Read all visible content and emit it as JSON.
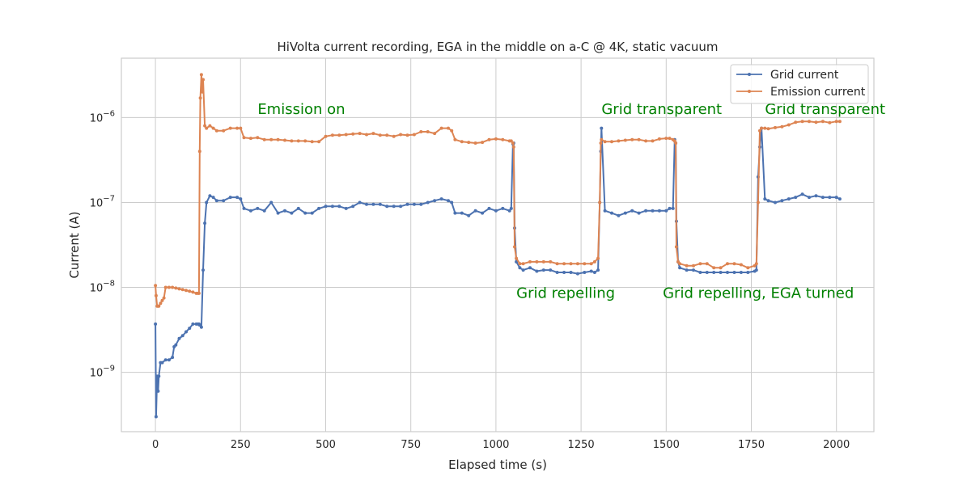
{
  "chart_data": {
    "type": "line",
    "title": "HiVolta current recording, EGA in the middle on a-C @ 4K, static vacuum",
    "xlabel": "Elapsed time (s)",
    "ylabel": "Current (A)",
    "xlim": [
      -100,
      2110
    ],
    "ylim": [
      2e-10,
      5e-06
    ],
    "yscale": "log",
    "xticks": [
      0,
      250,
      500,
      750,
      1000,
      1250,
      1500,
      1750,
      2000
    ],
    "xtick_labels": [
      "0",
      "250",
      "500",
      "750",
      "1000",
      "1250",
      "1500",
      "1750",
      "2000"
    ],
    "yticks": [
      1e-09,
      1e-08,
      1e-07,
      1e-06
    ],
    "ytick_bases": [
      "10",
      "10",
      "10",
      "10"
    ],
    "ytick_exponents": [
      "−9",
      "−8",
      "−7",
      "−6"
    ],
    "grid": true,
    "legend_position": "top-right",
    "series": [
      {
        "name": "Grid current",
        "color": "#4c72b0",
        "x": [
          0,
          2,
          5,
          8,
          10,
          15,
          20,
          30,
          40,
          50,
          55,
          60,
          70,
          80,
          90,
          100,
          110,
          120,
          125,
          128,
          130,
          135,
          140,
          145,
          150,
          160,
          170,
          180,
          200,
          220,
          240,
          250,
          260,
          280,
          300,
          320,
          340,
          360,
          380,
          400,
          420,
          440,
          460,
          480,
          500,
          520,
          540,
          560,
          580,
          600,
          620,
          640,
          660,
          680,
          700,
          720,
          740,
          760,
          780,
          800,
          820,
          840,
          860,
          870,
          880,
          900,
          920,
          940,
          960,
          980,
          1000,
          1020,
          1040,
          1045,
          1050,
          1052,
          1055,
          1060,
          1070,
          1080,
          1100,
          1120,
          1140,
          1160,
          1180,
          1200,
          1220,
          1240,
          1260,
          1280,
          1290,
          1300,
          1305,
          1308,
          1310,
          1320,
          1340,
          1360,
          1380,
          1400,
          1420,
          1440,
          1460,
          1480,
          1500,
          1510,
          1520,
          1525,
          1528,
          1530,
          1535,
          1540,
          1560,
          1580,
          1600,
          1620,
          1640,
          1660,
          1680,
          1700,
          1720,
          1740,
          1760,
          1765,
          1770,
          1775,
          1780,
          1790,
          1800,
          1820,
          1840,
          1860,
          1880,
          1900,
          1920,
          1940,
          1960,
          1980,
          2000,
          2010
        ],
        "y": [
          3.7e-09,
          3e-10,
          9e-10,
          6e-10,
          9e-10,
          1.3e-09,
          1.3e-09,
          1.4e-09,
          1.4e-09,
          1.5e-09,
          2e-09,
          2.1e-09,
          2.5e-09,
          2.7e-09,
          3e-09,
          3.3e-09,
          3.7e-09,
          3.7e-09,
          3.7e-09,
          3.7e-09,
          3.6e-09,
          3.4e-09,
          1.6e-08,
          5.7e-08,
          1e-07,
          1.2e-07,
          1.15e-07,
          1.05e-07,
          1.05e-07,
          1.15e-07,
          1.15e-07,
          1.1e-07,
          8.5e-08,
          8e-08,
          8.5e-08,
          8e-08,
          1e-07,
          7.5e-08,
          8e-08,
          7.5e-08,
          8.5e-08,
          7.5e-08,
          7.5e-08,
          8.5e-08,
          9e-08,
          9e-08,
          9e-08,
          8.5e-08,
          9e-08,
          1e-07,
          9.5e-08,
          9.5e-08,
          9.5e-08,
          9e-08,
          9e-08,
          9e-08,
          9.5e-08,
          9.5e-08,
          9.5e-08,
          1e-07,
          1.05e-07,
          1.1e-07,
          1.05e-07,
          1e-07,
          7.5e-08,
          7.5e-08,
          7e-08,
          8e-08,
          7.5e-08,
          8.5e-08,
          8e-08,
          8.5e-08,
          8e-08,
          8.5e-08,
          4.9e-07,
          5e-07,
          5e-08,
          2e-08,
          1.7e-08,
          1.6e-08,
          1.7e-08,
          1.55e-08,
          1.6e-08,
          1.6e-08,
          1.5e-08,
          1.5e-08,
          1.5e-08,
          1.45e-08,
          1.5e-08,
          1.55e-08,
          1.5e-08,
          1.6e-08,
          1e-07,
          4e-07,
          7.5e-07,
          8e-08,
          7.5e-08,
          7e-08,
          7.5e-08,
          8e-08,
          7.5e-08,
          8e-08,
          8e-08,
          8e-08,
          8e-08,
          8.5e-08,
          8.5e-08,
          5.5e-07,
          5e-07,
          6e-08,
          2e-08,
          1.7e-08,
          1.6e-08,
          1.6e-08,
          1.5e-08,
          1.5e-08,
          1.5e-08,
          1.5e-08,
          1.5e-08,
          1.5e-08,
          1.5e-08,
          1.5e-08,
          1.55e-08,
          1.6e-08,
          2e-07,
          4.5e-07,
          7.5e-07,
          1.1e-07,
          1.05e-07,
          1e-07,
          1.05e-07,
          1.1e-07,
          1.15e-07,
          1.25e-07,
          1.15e-07,
          1.2e-07,
          1.15e-07,
          1.15e-07,
          1.15e-07,
          1.1e-07
        ]
      },
      {
        "name": "Emission current",
        "color": "#dd8452",
        "x": [
          0,
          2,
          5,
          8,
          10,
          15,
          20,
          25,
          30,
          40,
          50,
          60,
          70,
          80,
          90,
          100,
          110,
          120,
          125,
          128,
          130,
          132,
          135,
          138,
          140,
          145,
          150,
          160,
          170,
          180,
          200,
          220,
          240,
          250,
          260,
          280,
          300,
          320,
          340,
          360,
          380,
          400,
          420,
          440,
          460,
          480,
          500,
          520,
          540,
          560,
          580,
          600,
          620,
          640,
          660,
          680,
          700,
          720,
          740,
          760,
          780,
          800,
          820,
          840,
          860,
          870,
          880,
          900,
          920,
          940,
          960,
          980,
          1000,
          1020,
          1040,
          1045,
          1050,
          1052,
          1055,
          1060,
          1070,
          1080,
          1100,
          1120,
          1140,
          1160,
          1180,
          1200,
          1220,
          1240,
          1260,
          1280,
          1290,
          1300,
          1305,
          1308,
          1310,
          1320,
          1340,
          1360,
          1380,
          1400,
          1420,
          1440,
          1460,
          1480,
          1500,
          1510,
          1520,
          1525,
          1528,
          1530,
          1535,
          1540,
          1560,
          1580,
          1600,
          1620,
          1640,
          1660,
          1680,
          1700,
          1720,
          1740,
          1760,
          1765,
          1770,
          1775,
          1780,
          1790,
          1800,
          1820,
          1840,
          1860,
          1880,
          1900,
          1920,
          1940,
          1960,
          1980,
          2000,
          2010
        ],
        "y": [
          1.05e-08,
          8e-09,
          6e-09,
          6e-09,
          6e-09,
          6.5e-09,
          7e-09,
          7.5e-09,
          1e-08,
          1e-08,
          1e-08,
          9.8e-09,
          9.6e-09,
          9.4e-09,
          9.2e-09,
          9e-09,
          8.8e-09,
          8.5e-09,
          8.5e-09,
          8.5e-09,
          4e-07,
          1.7e-06,
          3.2e-06,
          2e-06,
          2.8e-06,
          8e-07,
          7.5e-07,
          8e-07,
          7.5e-07,
          7e-07,
          7e-07,
          7.5e-07,
          7.5e-07,
          7.5e-07,
          5.8e-07,
          5.7e-07,
          5.8e-07,
          5.5e-07,
          5.5e-07,
          5.5e-07,
          5.4e-07,
          5.3e-07,
          5.3e-07,
          5.3e-07,
          5.2e-07,
          5.2e-07,
          6e-07,
          6.2e-07,
          6.2e-07,
          6.3e-07,
          6.4e-07,
          6.5e-07,
          6.3e-07,
          6.5e-07,
          6.2e-07,
          6.2e-07,
          6e-07,
          6.3e-07,
          6.2e-07,
          6.3e-07,
          6.8e-07,
          6.8e-07,
          6.5e-07,
          7.5e-07,
          7.5e-07,
          7e-07,
          5.5e-07,
          5.2e-07,
          5.1e-07,
          5e-07,
          5.1e-07,
          5.5e-07,
          5.6e-07,
          5.5e-07,
          5.3e-07,
          5.3e-07,
          5e-07,
          4.5e-07,
          3e-08,
          2.2e-08,
          1.9e-08,
          1.9e-08,
          2e-08,
          2e-08,
          2e-08,
          2e-08,
          1.9e-08,
          1.9e-08,
          1.9e-08,
          1.9e-08,
          1.9e-08,
          1.9e-08,
          2e-08,
          2.2e-08,
          1e-07,
          5e-07,
          5.5e-07,
          5.2e-07,
          5.2e-07,
          5.3e-07,
          5.4e-07,
          5.5e-07,
          5.5e-07,
          5.3e-07,
          5.3e-07,
          5.6e-07,
          5.7e-07,
          5.7e-07,
          5.5e-07,
          5.3e-07,
          5e-07,
          3e-08,
          2e-08,
          1.9e-08,
          1.8e-08,
          1.8e-08,
          1.9e-08,
          1.9e-08,
          1.7e-08,
          1.7e-08,
          1.9e-08,
          1.9e-08,
          1.85e-08,
          1.7e-08,
          1.8e-08,
          1.9e-08,
          1e-07,
          7e-07,
          7.5e-07,
          7.5e-07,
          7.4e-07,
          7.6e-07,
          7.8e-07,
          8.2e-07,
          8.8e-07,
          9e-07,
          9e-07,
          8.8e-07,
          9e-07,
          8.7e-07,
          9e-07,
          9e-07
        ]
      }
    ],
    "annotations": [
      {
        "text": "Emission on",
        "x": 300,
        "y": 1.1e-06,
        "color": "#008000"
      },
      {
        "text": "Grid transparent",
        "x": 1310,
        "y": 1.1e-06,
        "color": "#008000"
      },
      {
        "text": "Grid transparent",
        "x": 1790,
        "y": 1.1e-06,
        "color": "#008000"
      },
      {
        "text": "Grid repelling",
        "x": 1060,
        "y": 7.5e-09,
        "color": "#008000"
      },
      {
        "text": "Grid repelling, EGA turned",
        "x": 1490,
        "y": 7.5e-09,
        "color": "#008000"
      }
    ]
  }
}
